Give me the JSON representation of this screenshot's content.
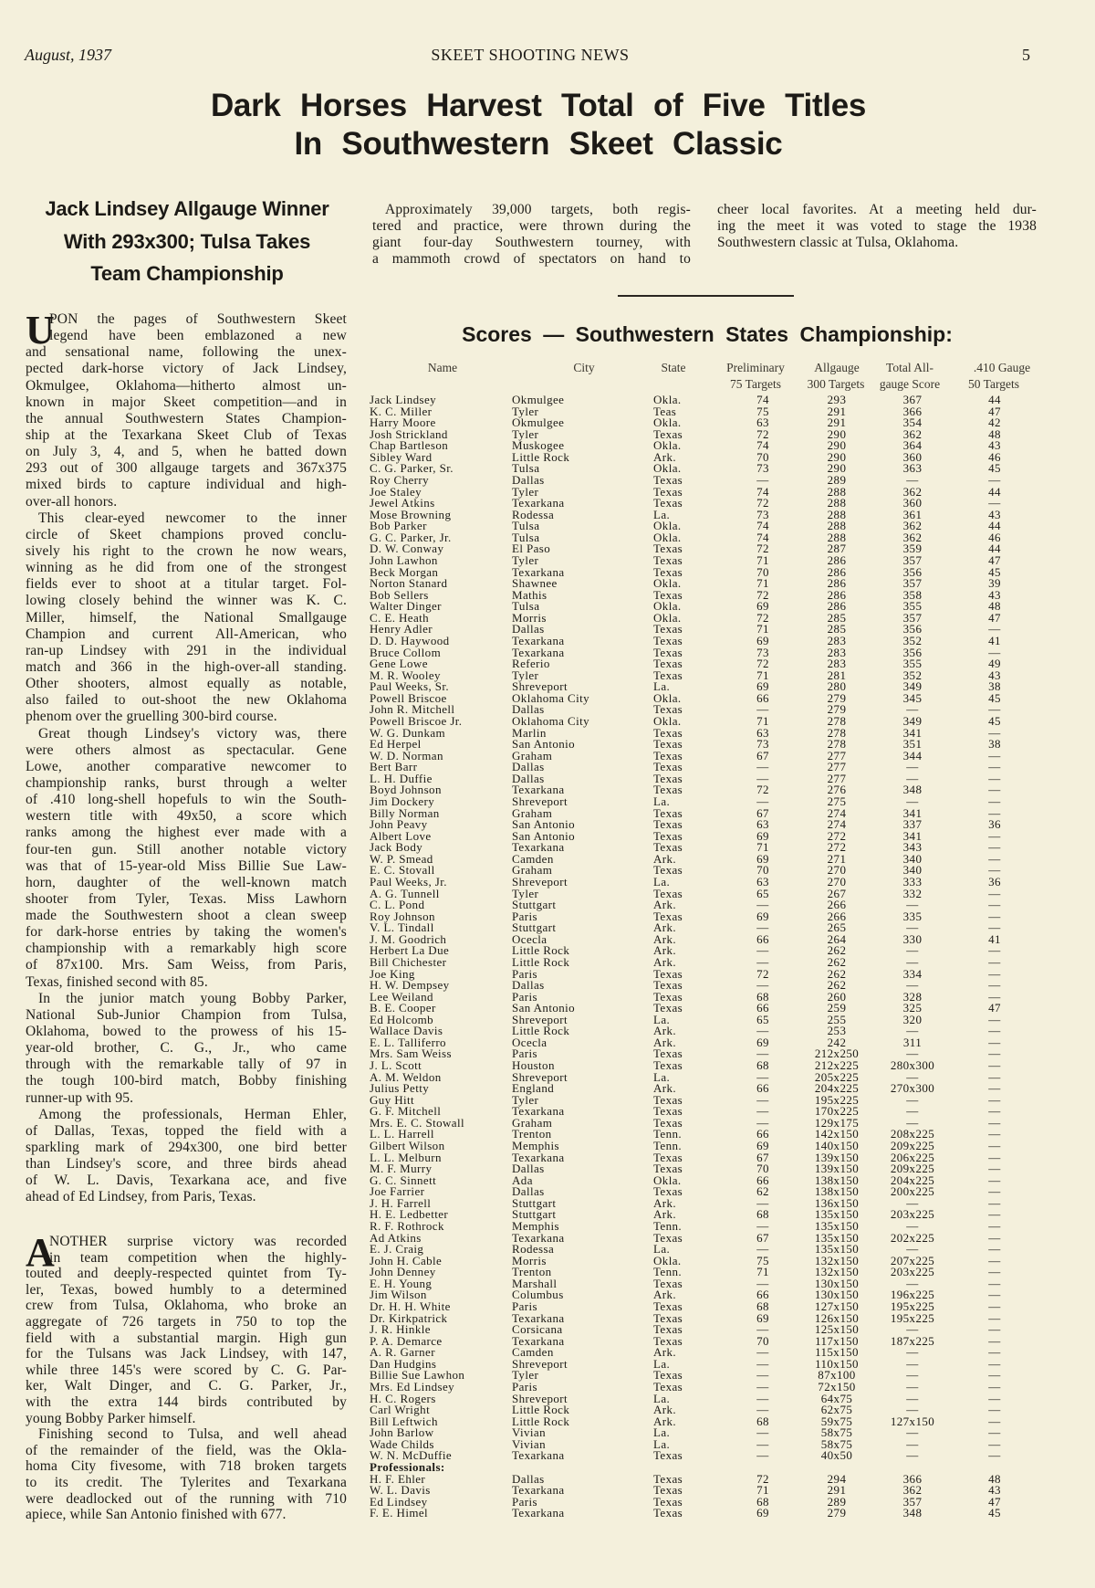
{
  "header": {
    "date": "August, 1937",
    "publication": "SKEET SHOOTING NEWS",
    "page_number": "5"
  },
  "headline": {
    "line1": "Dark Horses Harvest Total of Five Titles",
    "line2": "In Southwestern Skeet Classic"
  },
  "subheadline": {
    "lines": [
      "Jack Lindsey Allgauge Winner",
      "With 293x300; Tulsa Takes",
      "Team Championship"
    ]
  },
  "intro": {
    "column1": [
      "Approximately 39,000 targets, both regis-",
      "tered and practice, were thrown during the",
      "giant four-day Southwestern tourney, with",
      "a mammoth crowd of spectators on hand to"
    ],
    "column2": [
      "cheer local favorites. At a meeting held dur-",
      "ing the meet it was voted to stage the 1938",
      "Southwestern classic at Tulsa, Oklahoma."
    ]
  },
  "article": {
    "sections": [
      {
        "dropcap": "U",
        "paragraphs": [
          [
            "PON the pages of Southwestern Skeet",
            "legend have been emblazoned a new",
            "and sensational name, following the unex-",
            "pected dark-horse victory of Jack Lindsey,",
            "Okmulgee, Oklahoma—hitherto almost un-",
            "known in major Skeet competition—and in",
            "the annual Southwestern States Champion-",
            "ship at the Texarkana Skeet Club of Texas",
            "on July 3, 4, and 5, when he batted down",
            "293 out of 300 allgauge targets and 367x375",
            "mixed birds to capture individual and high-",
            "over-all honors."
          ],
          [
            "This clear-eyed newcomer to the inner",
            "circle of Skeet champions proved conclu-",
            "sively his right to the crown he now wears,",
            "winning as he did from one of the strongest",
            "fields ever to shoot at a titular target. Fol-",
            "lowing closely behind the winner was K. C.",
            "Miller, himself, the National Smallgauge",
            "Champion and current All-American, who",
            "ran-up Lindsey with 291 in the individual",
            "match and 366 in the high-over-all standing.",
            "Other shooters, almost equally as notable,",
            "also failed to out-shoot the new Oklahoma",
            "phenom over the gruelling 300-bird course."
          ],
          [
            "Great though Lindsey's victory was, there",
            "were others almost as spectacular. Gene",
            "Lowe, another comparative newcomer to",
            "championship ranks, burst through a welter",
            "of .410 long-shell hopefuls to win the South-",
            "western title with 49x50, a score which",
            "ranks among the highest ever made with a",
            "four-ten gun. Still another notable victory",
            "was that of 15-year-old Miss Billie Sue Law-",
            "horn, daughter of the well-known match",
            "shooter from Tyler, Texas. Miss Lawhorn",
            "made the Southwestern shoot a clean sweep",
            "for dark-horse entries by taking the women's",
            "championship with a remarkably high score",
            "of 87x100. Mrs. Sam Weiss, from Paris,",
            "Texas, finished second with 85."
          ],
          [
            "In the junior match young Bobby Parker,",
            "National Sub-Junior Champion from Tulsa,",
            "Oklahoma, bowed to the prowess of his 15-",
            "year-old brother, C. G., Jr., who came",
            "through with the remarkable tally of 97 in",
            "the tough 100-bird match, Bobby finishing",
            "runner-up with 95."
          ],
          [
            "Among the professionals, Herman Ehler,",
            "of Dallas, Texas, topped the field with a",
            "sparkling mark of 294x300, one bird better",
            "than Lindsey's score, and three birds ahead",
            "of W. L. Davis, Texarkana ace, and five",
            "ahead of Ed Lindsey, from Paris, Texas."
          ]
        ]
      },
      {
        "dropcap": "A",
        "paragraphs": [
          [
            "NOTHER surprise victory was recorded",
            "in team competition when the highly-",
            "touted and deeply-respected quintet from Ty-",
            "ler, Texas, bowed humbly to a determined",
            "crew from Tulsa, Oklahoma, who broke an",
            "aggregate of 726 targets in 750 to top the",
            "field with a substantial margin. High gun",
            "for the Tulsans was Jack Lindsey, with 147,",
            "while three 145's were scored by C. G. Par-",
            "ker, Walt Dinger, and C. G. Parker, Jr.,",
            "with the extra 144 birds contributed by",
            "young Bobby Parker himself."
          ],
          [
            "Finishing second to Tulsa, and well ahead",
            "of the remainder of the field, was the Okla-",
            "homa City fivesome, with 718 broken targets",
            "to its credit. The Tylerites and Texarkana",
            "were deadlocked out of the running with 710",
            "apiece, while San Antonio finished with 677."
          ]
        ]
      }
    ]
  },
  "scores": {
    "title": "Scores — Southwestern States Championship:",
    "columns": {
      "name": "Name",
      "city": "City",
      "state": "State",
      "preliminary": [
        "Preliminary",
        "75 Targets"
      ],
      "allgauge": [
        "Allgauge",
        "300 Targets"
      ],
      "total": [
        "Total All-",
        "gauge Score"
      ],
      "gauge410": [
        ".410 Gauge",
        "50 Targets"
      ]
    },
    "rows": [
      [
        "Jack Lindsey",
        "Okmulgee",
        "Okla.",
        "74",
        "293",
        "367",
        "44"
      ],
      [
        "K. C. Miller",
        "Tyler",
        "Teas",
        "75",
        "291",
        "366",
        "47"
      ],
      [
        "Harry Moore",
        "Okmulgee",
        "Okla.",
        "63",
        "291",
        "354",
        "42"
      ],
      [
        "Josh Strickland",
        "Tyler",
        "Texas",
        "72",
        "290",
        "362",
        "48"
      ],
      [
        "Chap Bartleson",
        "Muskogee",
        "Okla.",
        "74",
        "290",
        "364",
        "43"
      ],
      [
        "Sibley Ward",
        "Little Rock",
        "Ark.",
        "70",
        "290",
        "360",
        "46"
      ],
      [
        "C. G. Parker, Sr.",
        "Tulsa",
        "Okla.",
        "73",
        "290",
        "363",
        "45"
      ],
      [
        "Roy Cherry",
        "Dallas",
        "Texas",
        "—",
        "289",
        "—",
        "—"
      ],
      [
        "Joe Staley",
        "Tyler",
        "Texas",
        "74",
        "288",
        "362",
        "44"
      ],
      [
        "Jewel Atkins",
        "Texarkana",
        "Texas",
        "72",
        "288",
        "360",
        "—"
      ],
      [
        "Mose Browning",
        "Rodessa",
        "La.",
        "73",
        "288",
        "361",
        "43"
      ],
      [
        "Bob Parker",
        "Tulsa",
        "Okla.",
        "74",
        "288",
        "362",
        "44"
      ],
      [
        "G. C. Parker, Jr.",
        "Tulsa",
        "Okla.",
        "74",
        "288",
        "362",
        "46"
      ],
      [
        "D. W. Conway",
        "El Paso",
        "Texas",
        "72",
        "287",
        "359",
        "44"
      ],
      [
        "John Lawhon",
        "Tyler",
        "Texas",
        "71",
        "286",
        "357",
        "47"
      ],
      [
        "Beck Morgan",
        "Texarkana",
        "Texas",
        "70",
        "286",
        "356",
        "45"
      ],
      [
        "Norton Stanard",
        "Shawnee",
        "Okla.",
        "71",
        "286",
        "357",
        "39"
      ],
      [
        "Bob Sellers",
        "Mathis",
        "Texas",
        "72",
        "286",
        "358",
        "43"
      ],
      [
        "Walter Dinger",
        "Tulsa",
        "Okla.",
        "69",
        "286",
        "355",
        "48"
      ],
      [
        "C. E. Heath",
        "Morris",
        "Okla.",
        "72",
        "285",
        "357",
        "47"
      ],
      [
        "Henry Adler",
        "Dallas",
        "Texas",
        "71",
        "285",
        "356",
        "—"
      ],
      [
        "D. D. Haywood",
        "Texarkana",
        "Texas",
        "69",
        "283",
        "352",
        "41"
      ],
      [
        "Bruce Collom",
        "Texarkana",
        "Texas",
        "73",
        "283",
        "356",
        "—"
      ],
      [
        "Gene Lowe",
        "Referio",
        "Texas",
        "72",
        "283",
        "355",
        "49"
      ],
      [
        "M. R. Wooley",
        "Tyler",
        "Texas",
        "71",
        "281",
        "352",
        "43"
      ],
      [
        "Paul Weeks, Sr.",
        "Shreveport",
        "La.",
        "69",
        "280",
        "349",
        "38"
      ],
      [
        "Powell Briscoe",
        "Oklahoma City",
        "Okla.",
        "66",
        "279",
        "345",
        "45"
      ],
      [
        "John R. Mitchell",
        "Dallas",
        "Texas",
        "—",
        "279",
        "—",
        "—"
      ],
      [
        "Powell Briscoe Jr.",
        "Oklahoma City",
        "Okla.",
        "71",
        "278",
        "349",
        "45"
      ],
      [
        "W. G. Dunkam",
        "Marlin",
        "Texas",
        "63",
        "278",
        "341",
        "—"
      ],
      [
        "Ed Herpel",
        "San Antonio",
        "Texas",
        "73",
        "278",
        "351",
        "38"
      ],
      [
        "W. D. Norman",
        "Graham",
        "Texas",
        "67",
        "277",
        "344",
        "—"
      ],
      [
        "Bert Barr",
        "Dallas",
        "Texas",
        "—",
        "277",
        "—",
        "—"
      ],
      [
        "L. H. Duffie",
        "Dallas",
        "Texas",
        "—",
        "277",
        "—",
        "—"
      ],
      [
        "Boyd Johnson",
        "Texarkana",
        "Texas",
        "72",
        "276",
        "348",
        "—"
      ],
      [
        "Jim Dockery",
        "Shreveport",
        "La.",
        "—",
        "275",
        "—",
        "—"
      ],
      [
        "Billy Norman",
        "Graham",
        "Texas",
        "67",
        "274",
        "341",
        "—"
      ],
      [
        "John Peavy",
        "San Antonio",
        "Texas",
        "63",
        "274",
        "337",
        "36"
      ],
      [
        "Albert Love",
        "San Antonio",
        "Texas",
        "69",
        "272",
        "341",
        "—"
      ],
      [
        "Jack Body",
        "Texarkana",
        "Texas",
        "71",
        "272",
        "343",
        "—"
      ],
      [
        "W. P. Smead",
        "Camden",
        "Ark.",
        "69",
        "271",
        "340",
        "—"
      ],
      [
        "E. C. Stovall",
        "Graham",
        "Texas",
        "70",
        "270",
        "340",
        "—"
      ],
      [
        "Paul Weeks, Jr.",
        "Shreveport",
        "La.",
        "63",
        "270",
        "333",
        "36"
      ],
      [
        "A. G. Tunnell",
        "Tyler",
        "Texas",
        "65",
        "267",
        "332",
        "—"
      ],
      [
        "C. L. Pond",
        "Stuttgart",
        "Ark.",
        "—",
        "266",
        "—",
        "—"
      ],
      [
        "Roy Johnson",
        "Paris",
        "Texas",
        "69",
        "266",
        "335",
        "—"
      ],
      [
        "V. L. Tindall",
        "Stuttgart",
        "Ark.",
        "—",
        "265",
        "—",
        "—"
      ],
      [
        "J. M. Goodrich",
        "Ocecla",
        "Ark.",
        "66",
        "264",
        "330",
        "41"
      ],
      [
        "Herbert La Due",
        "Little Rock",
        "Ark.",
        "—",
        "262",
        "—",
        "—"
      ],
      [
        "Bill Chichester",
        "Little Rock",
        "Ark.",
        "—",
        "262",
        "—",
        "—"
      ],
      [
        "Joe King",
        "Paris",
        "Texas",
        "72",
        "262",
        "334",
        "—"
      ],
      [
        "H. W. Dempsey",
        "Dallas",
        "Texas",
        "—",
        "262",
        "—",
        "—"
      ],
      [
        "Lee Weiland",
        "Paris",
        "Texas",
        "68",
        "260",
        "328",
        "—"
      ],
      [
        "B. E. Cooper",
        "San Antonio",
        "Texas",
        "66",
        "259",
        "325",
        "47"
      ],
      [
        "Ed Holcomb",
        "Shreveport",
        "La.",
        "65",
        "255",
        "320",
        "—"
      ],
      [
        "Wallace Davis",
        "Little Rock",
        "Ark.",
        "—",
        "253",
        "—",
        "—"
      ],
      [
        "E. L. Talliferro",
        "Ocecla",
        "Ark.",
        "69",
        "242",
        "311",
        "—"
      ],
      [
        "Mrs. Sam Weiss",
        "Paris",
        "Texas",
        "—",
        "212x250",
        "—",
        "—"
      ],
      [
        "J. L. Scott",
        "Houston",
        "Texas",
        "68",
        "212x225",
        "280x300",
        "—"
      ],
      [
        "A. M. Weldon",
        "Shreveport",
        "La.",
        "—",
        "205x225",
        "—",
        "—"
      ],
      [
        "Julius Petty",
        "England",
        "Ark.",
        "66",
        "204x225",
        "270x300",
        "—"
      ],
      [
        "Guy Hitt",
        "Tyler",
        "Texas",
        "—",
        "195x225",
        "—",
        "—"
      ],
      [
        "G. F. Mitchell",
        "Texarkana",
        "Texas",
        "—",
        "170x225",
        "—",
        "—"
      ],
      [
        "Mrs. E. C. Stowall",
        "Graham",
        "Texas",
        "—",
        "129x175",
        "—",
        "—"
      ],
      [
        "L. L. Harrell",
        "Trenton",
        "Tenn.",
        "66",
        "142x150",
        "208x225",
        "—"
      ],
      [
        "Gilbert Wilson",
        "Memphis",
        "Tenn.",
        "69",
        "140x150",
        "209x225",
        "—"
      ],
      [
        "L. L. Melburn",
        "Texarkana",
        "Texas",
        "67",
        "139x150",
        "206x225",
        "—"
      ],
      [
        "M. F. Murry",
        "Dallas",
        "Texas",
        "70",
        "139x150",
        "209x225",
        "—"
      ],
      [
        "G. C. Sinnett",
        "Ada",
        "Okla.",
        "66",
        "138x150",
        "204x225",
        "—"
      ],
      [
        "Joe Farrier",
        "Dallas",
        "Texas",
        "62",
        "138x150",
        "200x225",
        "—"
      ],
      [
        "J. H. Farrell",
        "Stuttgart",
        "Ark.",
        "—",
        "136x150",
        "—",
        "—"
      ],
      [
        "H. E. Ledbetter",
        "Stuttgart",
        "Ark.",
        "68",
        "135x150",
        "203x225",
        "—"
      ],
      [
        "R. F. Rothrock",
        "Memphis",
        "Tenn.",
        "—",
        "135x150",
        "—",
        "—"
      ],
      [
        "Ad Atkins",
        "Texarkana",
        "Texas",
        "67",
        "135x150",
        "202x225",
        "—"
      ],
      [
        "E. J. Craig",
        "Rodessa",
        "La.",
        "—",
        "135x150",
        "—",
        "—"
      ],
      [
        "John H. Cable",
        "Morris",
        "Okla.",
        "75",
        "132x150",
        "207x225",
        "—"
      ],
      [
        "John Denney",
        "Trenton",
        "Tenn.",
        "71",
        "132x150",
        "203x225",
        "—"
      ],
      [
        "E. H. Young",
        "Marshall",
        "Texas",
        "—",
        "130x150",
        "—",
        "—"
      ],
      [
        "Jim Wilson",
        "Columbus",
        "Ark.",
        "66",
        "130x150",
        "196x225",
        "—"
      ],
      [
        "Dr. H. H. White",
        "Paris",
        "Texas",
        "68",
        "127x150",
        "195x225",
        "—"
      ],
      [
        "Dr. Kirkpatrick",
        "Texarkana",
        "Texas",
        "69",
        "126x150",
        "195x225",
        "—"
      ],
      [
        "J. R. Hinkle",
        "Corsicana",
        "Texas",
        "—",
        "125x150",
        "—",
        "—"
      ],
      [
        "P. A. Demarce",
        "Texarkana",
        "Texas",
        "70",
        "117x150",
        "187x225",
        "—"
      ],
      [
        "A. R. Garner",
        "Camden",
        "Ark.",
        "—",
        "115x150",
        "—",
        "—"
      ],
      [
        "Dan Hudgins",
        "Shreveport",
        "La.",
        "—",
        "110x150",
        "—",
        "—"
      ],
      [
        "Billie Sue Lawhon",
        "Tyler",
        "Texas",
        "—",
        "87x100",
        "—",
        "—"
      ],
      [
        "Mrs. Ed Lindsey",
        "Paris",
        "Texas",
        "—",
        "72x150",
        "—",
        "—"
      ],
      [
        "H. C. Rogers",
        "Shreveport",
        "La.",
        "—",
        "64x75",
        "—",
        "—"
      ],
      [
        "Carl Wright",
        "Little Rock",
        "Ark.",
        "—",
        "62x75",
        "—",
        "—"
      ],
      [
        "Bill Leftwich",
        "Little Rock",
        "Ark.",
        "68",
        "59x75",
        "127x150",
        "—"
      ],
      [
        "John Barlow",
        "Vivian",
        "La.",
        "—",
        "58x75",
        "—",
        "—"
      ],
      [
        "Wade Childs",
        "Vivian",
        "La.",
        "—",
        "58x75",
        "—",
        "—"
      ],
      [
        "W. N. McDuffie",
        "Texarkana",
        "Texas",
        "—",
        "40x50",
        "—",
        "—"
      ]
    ],
    "professionals_label": "Professionals:",
    "professionals": [
      [
        "H. F. Ehler",
        "Dallas",
        "Texas",
        "72",
        "294",
        "366",
        "48"
      ],
      [
        "W. L. Davis",
        "Texarkana",
        "Texas",
        "71",
        "291",
        "362",
        "43"
      ],
      [
        "Ed Lindsey",
        "Paris",
        "Texas",
        "68",
        "289",
        "357",
        "47"
      ],
      [
        "F. E. Himel",
        "Texarkana",
        "Texas",
        "69",
        "279",
        "348",
        "45"
      ]
    ]
  }
}
